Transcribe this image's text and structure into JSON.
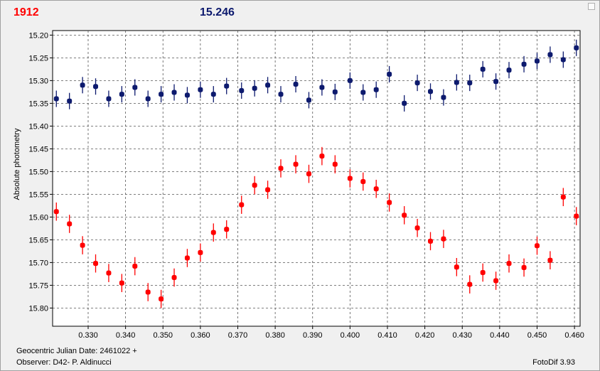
{
  "header": {
    "left_value": "1912",
    "right_value": "15.246",
    "left_color": "#ff0000",
    "right_color": "#0d1a6e"
  },
  "footer": {
    "julian_date": "Geocentric Julian Date: 2461022 +",
    "observer": "Observer: D42- P. Aldinucci",
    "software": "FotoDif 3.93"
  },
  "chart_data": {
    "type": "scatter",
    "title": "",
    "xlabel": "",
    "ylabel": "Absolute photometry",
    "xlim": [
      0.3205,
      0.4615
    ],
    "ylim": [
      15.84,
      15.19
    ],
    "y_inverted": true,
    "grid": true,
    "x_ticks": [
      "0.330",
      "0.340",
      "0.350",
      "0.360",
      "0.370",
      "0.380",
      "0.390",
      "0.400",
      "0.410",
      "0.420",
      "0.430",
      "0.440",
      "0.450",
      "0.460"
    ],
    "x_tick_values": [
      0.33,
      0.34,
      0.35,
      0.36,
      0.37,
      0.38,
      0.39,
      0.4,
      0.41,
      0.42,
      0.43,
      0.44,
      0.45,
      0.46
    ],
    "y_ticks": [
      "15.20",
      "15.25",
      "15.30",
      "15.35",
      "15.40",
      "15.45",
      "15.50",
      "15.55",
      "15.60",
      "15.65",
      "15.70",
      "15.75",
      "15.80"
    ],
    "y_tick_values": [
      15.2,
      15.25,
      15.3,
      15.35,
      15.4,
      15.45,
      15.5,
      15.55,
      15.6,
      15.65,
      15.7,
      15.75,
      15.8
    ],
    "series": [
      {
        "color": "#0d1a6e",
        "error": 0.018,
        "points": [
          [
            0.3215,
            15.34
          ],
          [
            0.325,
            15.345
          ],
          [
            0.3285,
            15.31
          ],
          [
            0.332,
            15.313
          ],
          [
            0.3355,
            15.34
          ],
          [
            0.339,
            15.33
          ],
          [
            0.3425,
            15.315
          ],
          [
            0.346,
            15.34
          ],
          [
            0.3495,
            15.33
          ],
          [
            0.353,
            15.326
          ],
          [
            0.3565,
            15.332
          ],
          [
            0.36,
            15.32
          ],
          [
            0.3635,
            15.33
          ],
          [
            0.367,
            15.312
          ],
          [
            0.371,
            15.322
          ],
          [
            0.3745,
            15.317
          ],
          [
            0.378,
            15.31
          ],
          [
            0.3815,
            15.33
          ],
          [
            0.3855,
            15.308
          ],
          [
            0.389,
            15.343
          ],
          [
            0.3925,
            15.315
          ],
          [
            0.396,
            15.325
          ],
          [
            0.4,
            15.3
          ],
          [
            0.4035,
            15.326
          ],
          [
            0.407,
            15.32
          ],
          [
            0.4105,
            15.286
          ],
          [
            0.4145,
            15.35
          ],
          [
            0.418,
            15.305
          ],
          [
            0.4215,
            15.324
          ],
          [
            0.425,
            15.337
          ],
          [
            0.4285,
            15.304
          ],
          [
            0.432,
            15.305
          ],
          [
            0.4355,
            15.275
          ],
          [
            0.439,
            15.302
          ],
          [
            0.4425,
            15.277
          ],
          [
            0.4465,
            15.264
          ],
          [
            0.45,
            15.257
          ],
          [
            0.4535,
            15.243
          ],
          [
            0.457,
            15.254
          ],
          [
            0.4605,
            15.228
          ]
        ]
      },
      {
        "color": "#ff0000",
        "error": 0.02,
        "points": [
          [
            0.3215,
            15.588
          ],
          [
            0.325,
            15.615
          ],
          [
            0.3285,
            15.662
          ],
          [
            0.332,
            15.702
          ],
          [
            0.3355,
            15.723
          ],
          [
            0.339,
            15.745
          ],
          [
            0.3425,
            15.708
          ],
          [
            0.346,
            15.765
          ],
          [
            0.3495,
            15.78
          ],
          [
            0.353,
            15.733
          ],
          [
            0.3565,
            15.69
          ],
          [
            0.36,
            15.678
          ],
          [
            0.3635,
            15.634
          ],
          [
            0.367,
            15.627
          ],
          [
            0.371,
            15.573
          ],
          [
            0.3745,
            15.53
          ],
          [
            0.378,
            15.54
          ],
          [
            0.3815,
            15.493
          ],
          [
            0.3855,
            15.484
          ],
          [
            0.389,
            15.505
          ],
          [
            0.3925,
            15.466
          ],
          [
            0.396,
            15.484
          ],
          [
            0.4,
            15.515
          ],
          [
            0.4035,
            15.522
          ],
          [
            0.407,
            15.538
          ],
          [
            0.4105,
            15.568
          ],
          [
            0.4145,
            15.596
          ],
          [
            0.418,
            15.624
          ],
          [
            0.4215,
            15.653
          ],
          [
            0.425,
            15.648
          ],
          [
            0.4285,
            15.71
          ],
          [
            0.432,
            15.748
          ],
          [
            0.4355,
            15.722
          ],
          [
            0.439,
            15.74
          ],
          [
            0.4425,
            15.702
          ],
          [
            0.4465,
            15.711
          ],
          [
            0.45,
            15.663
          ],
          [
            0.4535,
            15.695
          ],
          [
            0.457,
            15.556
          ],
          [
            0.4605,
            15.598
          ]
        ]
      }
    ]
  }
}
